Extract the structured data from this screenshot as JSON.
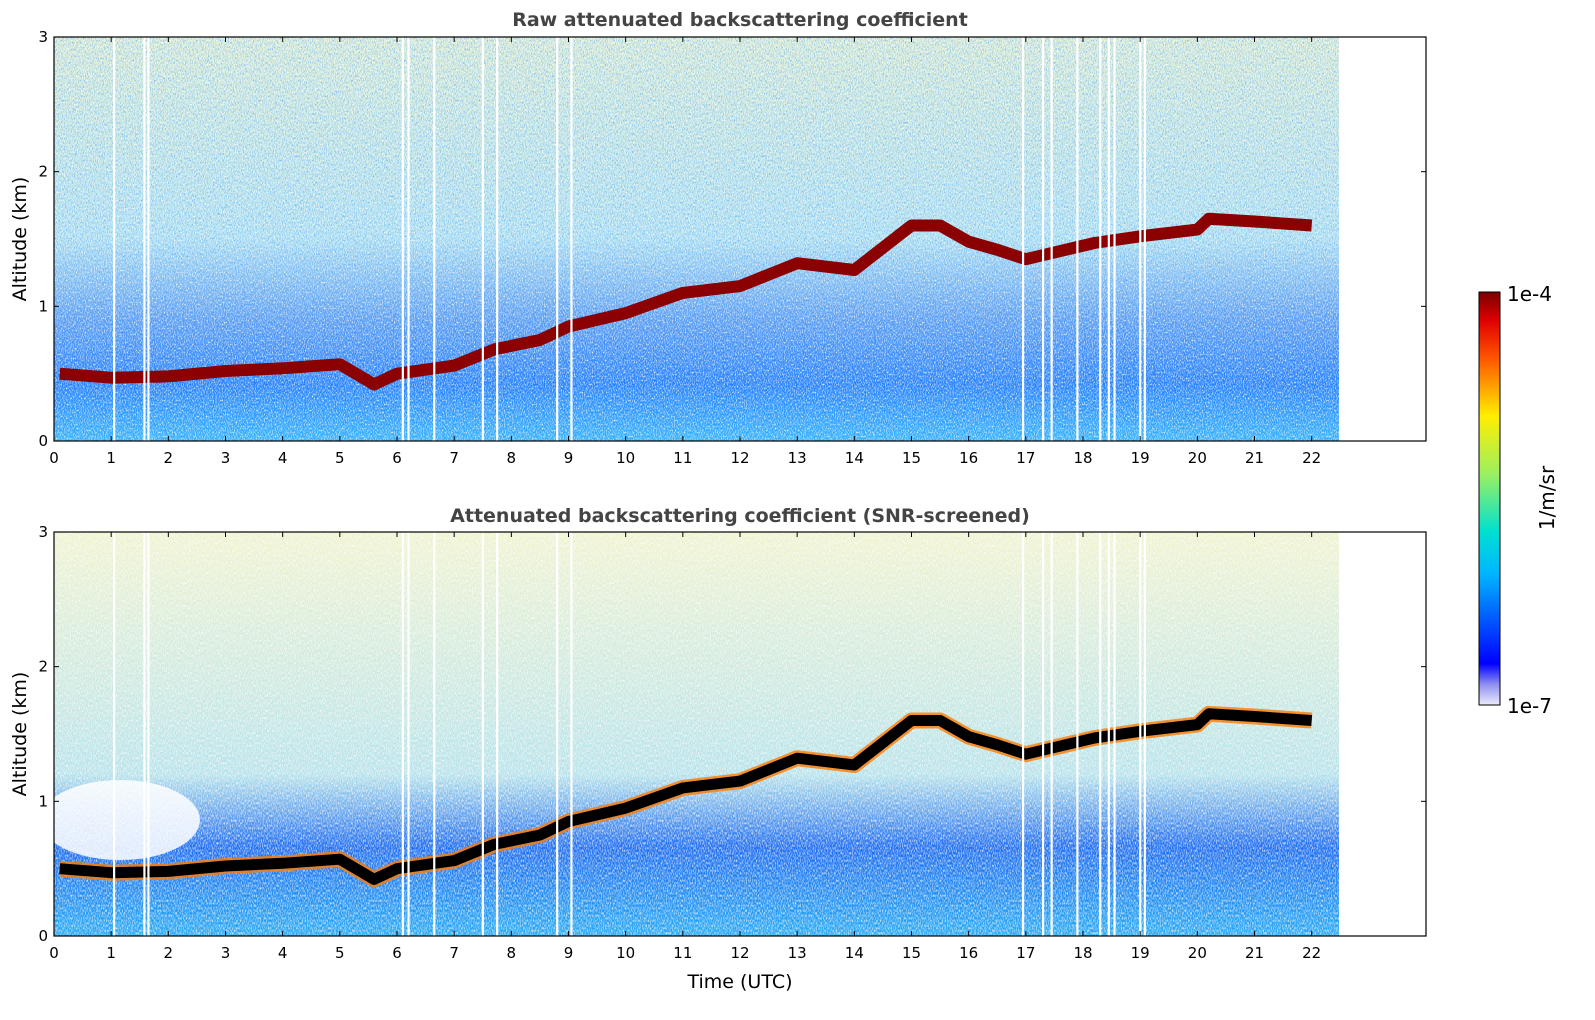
{
  "chart_data": [
    {
      "type": "heatmap",
      "title": "Raw attenuated backscattering coefficient",
      "xlabel": "",
      "ylabel": "Altitude (km)",
      "xlim": [
        0,
        24
      ],
      "ylim": [
        0,
        3
      ],
      "xticks": [
        "0",
        "1",
        "2",
        "3",
        "4",
        "5",
        "6",
        "7",
        "8",
        "9",
        "10",
        "11",
        "12",
        "13",
        "14",
        "15",
        "16",
        "17",
        "18",
        "19",
        "20",
        "21",
        "22"
      ],
      "yticks": [
        "0",
        "1",
        "2",
        "3"
      ],
      "data_end_time": 22.5,
      "cloud_layer": {
        "time": [
          0.1,
          1,
          2,
          3,
          4,
          5,
          5.6,
          6,
          7,
          7.7,
          8.5,
          9,
          10,
          11,
          12,
          13,
          14,
          15,
          15.5,
          16,
          16.5,
          17,
          18.2,
          19,
          20,
          20.2,
          21,
          22
        ],
        "altitude_km": [
          0.5,
          0.47,
          0.48,
          0.52,
          0.54,
          0.57,
          0.42,
          0.5,
          0.56,
          0.68,
          0.75,
          0.85,
          0.95,
          1.1,
          1.15,
          1.32,
          1.27,
          1.6,
          1.6,
          1.48,
          1.42,
          1.35,
          1.47,
          1.52,
          1.57,
          1.65,
          1.63,
          1.6
        ]
      },
      "data_gaps_time": [
        1.05,
        1.58,
        1.65,
        6.1,
        6.2,
        6.65,
        7.5,
        7.75,
        8.8,
        9.05,
        16.95,
        17.3,
        17.45,
        17.9,
        18.3,
        18.45,
        18.55,
        19.0,
        19.08
      ],
      "grid": false
    },
    {
      "type": "heatmap",
      "title": "Attenuated backscattering coefficient (SNR-screened)",
      "xlabel": "Time (UTC)",
      "ylabel": "Altitude (km)",
      "xlim": [
        0,
        24
      ],
      "ylim": [
        0,
        3
      ],
      "xticks": [
        "0",
        "1",
        "2",
        "3",
        "4",
        "5",
        "6",
        "7",
        "8",
        "9",
        "10",
        "11",
        "12",
        "13",
        "14",
        "15",
        "16",
        "17",
        "18",
        "19",
        "20",
        "21",
        "22"
      ],
      "yticks": [
        "0",
        "1",
        "2",
        "3"
      ],
      "data_end_time": 22.5,
      "grid": false
    }
  ],
  "colorbar": {
    "label": "1/m/sr",
    "max_label": "1e-4",
    "min_label": "1e-7",
    "scale": "log",
    "range": [
      1e-07,
      0.0001
    ],
    "colormap": "jet"
  }
}
